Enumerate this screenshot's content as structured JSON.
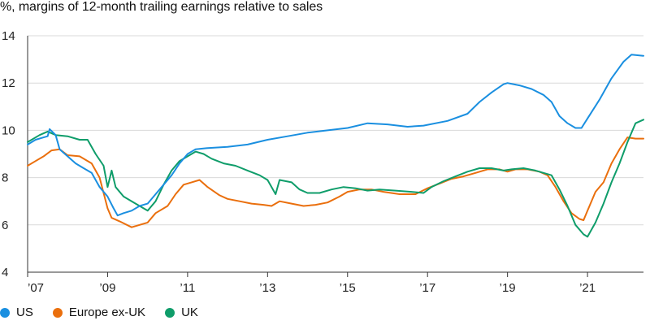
{
  "chart_data": {
    "type": "line",
    "subtitle": "%, margins of 12-month trailing earnings relative to sales",
    "ylim": [
      4,
      14
    ],
    "y_ticks": [
      4,
      6,
      8,
      10,
      12,
      14
    ],
    "xlim": [
      2007.0,
      2022.4
    ],
    "x_ticks": [
      {
        "value": 2007,
        "label": "’07"
      },
      {
        "value": 2009,
        "label": "’09"
      },
      {
        "value": 2011,
        "label": "’11"
      },
      {
        "value": 2013,
        "label": "’13"
      },
      {
        "value": 2015,
        "label": "’15"
      },
      {
        "value": 2017,
        "label": "’17"
      },
      {
        "value": 2019,
        "label": "’19"
      },
      {
        "value": 2021,
        "label": "’21"
      }
    ],
    "grid": true,
    "legend_position": "bottom-left",
    "series": [
      {
        "name": "US",
        "color": "#1a8fe0",
        "points": [
          [
            2007.0,
            9.4
          ],
          [
            2007.2,
            9.6
          ],
          [
            2007.4,
            9.7
          ],
          [
            2007.5,
            9.75
          ],
          [
            2007.55,
            10.05
          ],
          [
            2007.7,
            9.8
          ],
          [
            2007.8,
            9.2
          ],
          [
            2008.0,
            8.9
          ],
          [
            2008.2,
            8.6
          ],
          [
            2008.4,
            8.4
          ],
          [
            2008.6,
            8.2
          ],
          [
            2008.8,
            7.6
          ],
          [
            2009.0,
            7.2
          ],
          [
            2009.15,
            6.7
          ],
          [
            2009.25,
            6.4
          ],
          [
            2009.4,
            6.5
          ],
          [
            2009.6,
            6.6
          ],
          [
            2009.8,
            6.8
          ],
          [
            2010.0,
            6.9
          ],
          [
            2010.2,
            7.3
          ],
          [
            2010.4,
            7.7
          ],
          [
            2010.6,
            8.1
          ],
          [
            2010.8,
            8.6
          ],
          [
            2011.0,
            9.0
          ],
          [
            2011.2,
            9.2
          ],
          [
            2011.5,
            9.25
          ],
          [
            2012.0,
            9.3
          ],
          [
            2012.5,
            9.4
          ],
          [
            2013.0,
            9.6
          ],
          [
            2013.5,
            9.75
          ],
          [
            2014.0,
            9.9
          ],
          [
            2014.5,
            10.0
          ],
          [
            2015.0,
            10.1
          ],
          [
            2015.5,
            10.3
          ],
          [
            2016.0,
            10.25
          ],
          [
            2016.5,
            10.15
          ],
          [
            2016.9,
            10.2
          ],
          [
            2017.5,
            10.4
          ],
          [
            2018.0,
            10.7
          ],
          [
            2018.3,
            11.2
          ],
          [
            2018.6,
            11.6
          ],
          [
            2018.9,
            11.95
          ],
          [
            2019.0,
            12.0
          ],
          [
            2019.3,
            11.9
          ],
          [
            2019.6,
            11.75
          ],
          [
            2019.9,
            11.5
          ],
          [
            2020.1,
            11.2
          ],
          [
            2020.3,
            10.6
          ],
          [
            2020.5,
            10.3
          ],
          [
            2020.7,
            10.1
          ],
          [
            2020.85,
            10.1
          ],
          [
            2021.0,
            10.5
          ],
          [
            2021.3,
            11.3
          ],
          [
            2021.6,
            12.2
          ],
          [
            2021.9,
            12.9
          ],
          [
            2022.1,
            13.2
          ],
          [
            2022.4,
            13.15
          ]
        ]
      },
      {
        "name": "Europe ex-UK",
        "color": "#ea6f0d",
        "points": [
          [
            2007.0,
            8.5
          ],
          [
            2007.2,
            8.7
          ],
          [
            2007.4,
            8.9
          ],
          [
            2007.6,
            9.15
          ],
          [
            2007.8,
            9.2
          ],
          [
            2008.0,
            8.95
          ],
          [
            2008.3,
            8.9
          ],
          [
            2008.6,
            8.6
          ],
          [
            2008.8,
            8.0
          ],
          [
            2009.0,
            6.7
          ],
          [
            2009.1,
            6.3
          ],
          [
            2009.3,
            6.15
          ],
          [
            2009.6,
            5.9
          ],
          [
            2009.8,
            6.0
          ],
          [
            2010.0,
            6.1
          ],
          [
            2010.2,
            6.5
          ],
          [
            2010.5,
            6.8
          ],
          [
            2010.7,
            7.3
          ],
          [
            2010.9,
            7.7
          ],
          [
            2011.1,
            7.8
          ],
          [
            2011.3,
            7.9
          ],
          [
            2011.5,
            7.6
          ],
          [
            2011.8,
            7.25
          ],
          [
            2012.0,
            7.1
          ],
          [
            2012.3,
            7.0
          ],
          [
            2012.6,
            6.9
          ],
          [
            2012.9,
            6.85
          ],
          [
            2013.1,
            6.8
          ],
          [
            2013.3,
            7.0
          ],
          [
            2013.6,
            6.9
          ],
          [
            2013.9,
            6.8
          ],
          [
            2014.2,
            6.85
          ],
          [
            2014.5,
            6.95
          ],
          [
            2014.8,
            7.2
          ],
          [
            2015.0,
            7.4
          ],
          [
            2015.3,
            7.5
          ],
          [
            2015.6,
            7.5
          ],
          [
            2015.9,
            7.4
          ],
          [
            2016.3,
            7.3
          ],
          [
            2016.7,
            7.3
          ],
          [
            2017.0,
            7.55
          ],
          [
            2017.3,
            7.75
          ],
          [
            2017.6,
            7.95
          ],
          [
            2017.9,
            8.05
          ],
          [
            2018.2,
            8.2
          ],
          [
            2018.5,
            8.35
          ],
          [
            2018.8,
            8.35
          ],
          [
            2019.0,
            8.25
          ],
          [
            2019.2,
            8.35
          ],
          [
            2019.5,
            8.35
          ],
          [
            2019.8,
            8.25
          ],
          [
            2020.0,
            8.1
          ],
          [
            2020.2,
            7.6
          ],
          [
            2020.4,
            7.0
          ],
          [
            2020.6,
            6.5
          ],
          [
            2020.8,
            6.25
          ],
          [
            2020.9,
            6.2
          ],
          [
            2021.0,
            6.6
          ],
          [
            2021.2,
            7.4
          ],
          [
            2021.4,
            7.8
          ],
          [
            2021.6,
            8.6
          ],
          [
            2021.8,
            9.2
          ],
          [
            2022.0,
            9.7
          ],
          [
            2022.2,
            9.65
          ],
          [
            2022.4,
            9.65
          ]
        ]
      },
      {
        "name": "UK",
        "color": "#0f9d6a",
        "points": [
          [
            2007.0,
            9.5
          ],
          [
            2007.3,
            9.8
          ],
          [
            2007.5,
            9.95
          ],
          [
            2007.7,
            9.8
          ],
          [
            2008.0,
            9.75
          ],
          [
            2008.3,
            9.6
          ],
          [
            2008.5,
            9.6
          ],
          [
            2008.7,
            9.0
          ],
          [
            2008.9,
            8.5
          ],
          [
            2009.0,
            7.6
          ],
          [
            2009.1,
            8.3
          ],
          [
            2009.2,
            7.6
          ],
          [
            2009.4,
            7.2
          ],
          [
            2009.6,
            7.0
          ],
          [
            2009.8,
            6.8
          ],
          [
            2010.0,
            6.6
          ],
          [
            2010.2,
            7.0
          ],
          [
            2010.4,
            7.7
          ],
          [
            2010.6,
            8.3
          ],
          [
            2010.8,
            8.7
          ],
          [
            2011.0,
            8.9
          ],
          [
            2011.2,
            9.1
          ],
          [
            2011.4,
            9.0
          ],
          [
            2011.6,
            8.8
          ],
          [
            2011.9,
            8.6
          ],
          [
            2012.2,
            8.5
          ],
          [
            2012.5,
            8.3
          ],
          [
            2012.8,
            8.1
          ],
          [
            2013.0,
            7.9
          ],
          [
            2013.2,
            7.3
          ],
          [
            2013.3,
            7.9
          ],
          [
            2013.6,
            7.8
          ],
          [
            2013.8,
            7.5
          ],
          [
            2014.0,
            7.35
          ],
          [
            2014.3,
            7.35
          ],
          [
            2014.6,
            7.5
          ],
          [
            2014.9,
            7.6
          ],
          [
            2015.2,
            7.55
          ],
          [
            2015.5,
            7.45
          ],
          [
            2015.8,
            7.5
          ],
          [
            2016.2,
            7.45
          ],
          [
            2016.6,
            7.4
          ],
          [
            2016.9,
            7.35
          ],
          [
            2017.1,
            7.6
          ],
          [
            2017.4,
            7.85
          ],
          [
            2017.7,
            8.05
          ],
          [
            2018.0,
            8.25
          ],
          [
            2018.3,
            8.4
          ],
          [
            2018.6,
            8.4
          ],
          [
            2018.9,
            8.3
          ],
          [
            2019.1,
            8.35
          ],
          [
            2019.4,
            8.4
          ],
          [
            2019.7,
            8.3
          ],
          [
            2019.9,
            8.2
          ],
          [
            2020.1,
            8.1
          ],
          [
            2020.3,
            7.5
          ],
          [
            2020.5,
            6.8
          ],
          [
            2020.7,
            6.0
          ],
          [
            2020.9,
            5.6
          ],
          [
            2021.0,
            5.5
          ],
          [
            2021.2,
            6.1
          ],
          [
            2021.4,
            6.9
          ],
          [
            2021.6,
            7.8
          ],
          [
            2021.8,
            8.6
          ],
          [
            2022.0,
            9.5
          ],
          [
            2022.2,
            10.3
          ],
          [
            2022.4,
            10.45
          ]
        ]
      }
    ]
  },
  "legend": [
    {
      "label": "US",
      "color": "#1a8fe0"
    },
    {
      "label": "Europe ex-UK",
      "color": "#ea6f0d"
    },
    {
      "label": "UK",
      "color": "#0f9d6a"
    }
  ]
}
